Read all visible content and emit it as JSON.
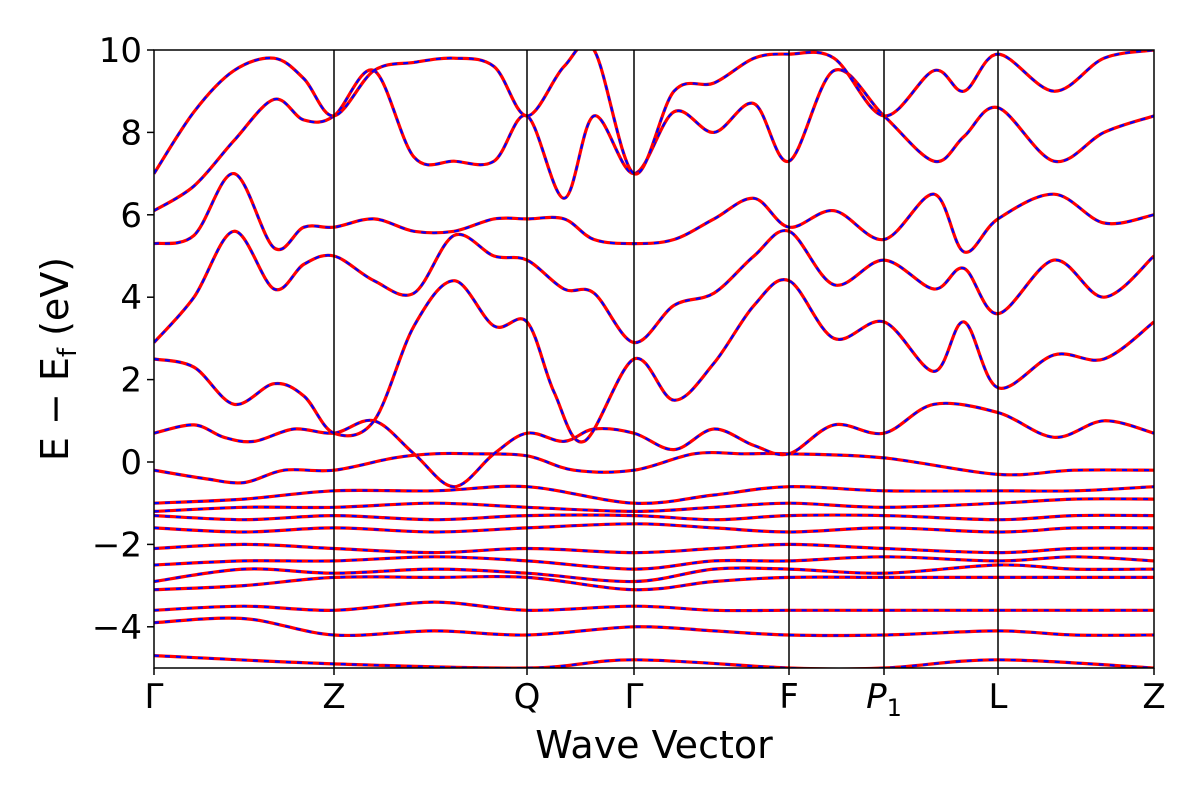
{
  "chart_data": {
    "type": "line",
    "title": "",
    "xlabel": "Wave Vector",
    "ylabel": "E − E_f (eV)",
    "ylabel_parts": {
      "main": "E − E",
      "sub": "f",
      "unit": " (eV)"
    },
    "ylim": [
      -5,
      10
    ],
    "yticks": [
      -4,
      -2,
      0,
      2,
      4,
      6,
      8,
      10
    ],
    "ytick_labels": [
      "−4",
      "−2",
      "0",
      "2",
      "4",
      "6",
      "8",
      "10"
    ],
    "grid": false,
    "legend": "none",
    "high_symmetry_points": [
      {
        "label": "Γ",
        "k": 0.0
      },
      {
        "label": "Z",
        "k": 0.18
      },
      {
        "label": "Q",
        "k": 0.373
      },
      {
        "label": "Γ",
        "k": 0.48
      },
      {
        "label": "F",
        "k": 0.635
      },
      {
        "label": "P1",
        "label_main": "P",
        "label_sub": "1",
        "k": 0.73
      },
      {
        "label": "L",
        "k": 0.844
      },
      {
        "label": "Z",
        "k": 1.0
      }
    ],
    "line_colors": {
      "series_a": "#ff0000",
      "series_b": "#0000ff"
    },
    "series_style": {
      "series_a": "solid",
      "series_b": "dashed"
    },
    "bands": [
      {
        "k": [
          0,
          0.18,
          0.373,
          0.48,
          0.635,
          0.73,
          0.844,
          1.0
        ],
        "E": [
          -4.7,
          -4.9,
          -5.0,
          -4.8,
          -5.0,
          -5.0,
          -4.8,
          -5.0
        ]
      },
      {
        "k": [
          0,
          0.09,
          0.18,
          0.28,
          0.373,
          0.48,
          0.56,
          0.635,
          0.73,
          0.844,
          0.92,
          1.0
        ],
        "E": [
          -3.9,
          -3.8,
          -4.2,
          -4.1,
          -4.2,
          -4.0,
          -4.1,
          -4.2,
          -4.2,
          -4.1,
          -4.2,
          -4.2
        ]
      },
      {
        "k": [
          0,
          0.09,
          0.18,
          0.28,
          0.373,
          0.48,
          0.56,
          0.635,
          0.73,
          0.844,
          0.92,
          1.0
        ],
        "E": [
          -3.6,
          -3.5,
          -3.6,
          -3.4,
          -3.6,
          -3.5,
          -3.6,
          -3.6,
          -3.6,
          -3.6,
          -3.6,
          -3.6
        ]
      },
      {
        "k": [
          0,
          0.09,
          0.18,
          0.28,
          0.373,
          0.48,
          0.56,
          0.635,
          0.73,
          0.844,
          0.92,
          1.0
        ],
        "E": [
          -3.1,
          -3.0,
          -2.8,
          -2.8,
          -2.8,
          -3.1,
          -2.9,
          -2.8,
          -2.8,
          -2.8,
          -2.8,
          -2.8
        ]
      },
      {
        "k": [
          0,
          0.09,
          0.18,
          0.28,
          0.373,
          0.48,
          0.56,
          0.635,
          0.73,
          0.844,
          0.92,
          1.0
        ],
        "E": [
          -2.9,
          -2.6,
          -2.7,
          -2.6,
          -2.7,
          -2.9,
          -2.6,
          -2.6,
          -2.7,
          -2.5,
          -2.6,
          -2.6
        ]
      },
      {
        "k": [
          0,
          0.09,
          0.18,
          0.28,
          0.373,
          0.48,
          0.56,
          0.635,
          0.73,
          0.844,
          0.92,
          1.0
        ],
        "E": [
          -2.5,
          -2.4,
          -2.4,
          -2.3,
          -2.4,
          -2.6,
          -2.4,
          -2.4,
          -2.3,
          -2.4,
          -2.3,
          -2.4
        ]
      },
      {
        "k": [
          0,
          0.09,
          0.18,
          0.28,
          0.373,
          0.48,
          0.56,
          0.635,
          0.73,
          0.844,
          0.92,
          1.0
        ],
        "E": [
          -2.1,
          -2.0,
          -2.1,
          -2.2,
          -2.1,
          -2.2,
          -2.1,
          -2.0,
          -2.1,
          -2.2,
          -2.1,
          -2.1
        ]
      },
      {
        "k": [
          0,
          0.09,
          0.18,
          0.28,
          0.373,
          0.48,
          0.56,
          0.635,
          0.73,
          0.844,
          0.92,
          1.0
        ],
        "E": [
          -1.6,
          -1.7,
          -1.6,
          -1.7,
          -1.6,
          -1.5,
          -1.6,
          -1.7,
          -1.6,
          -1.7,
          -1.6,
          -1.6
        ]
      },
      {
        "k": [
          0,
          0.09,
          0.18,
          0.28,
          0.373,
          0.48,
          0.56,
          0.635,
          0.73,
          0.844,
          0.92,
          1.0
        ],
        "E": [
          -1.3,
          -1.4,
          -1.3,
          -1.4,
          -1.3,
          -1.3,
          -1.4,
          -1.3,
          -1.3,
          -1.4,
          -1.3,
          -1.3
        ]
      },
      {
        "k": [
          0,
          0.09,
          0.18,
          0.28,
          0.373,
          0.48,
          0.56,
          0.635,
          0.73,
          0.844,
          0.92,
          1.0
        ],
        "E": [
          -1.2,
          -1.1,
          -1.1,
          -1.0,
          -1.1,
          -1.2,
          -1.1,
          -1.0,
          -1.1,
          -1.0,
          -0.9,
          -0.9
        ]
      },
      {
        "k": [
          0,
          0.09,
          0.18,
          0.28,
          0.373,
          0.48,
          0.56,
          0.635,
          0.73,
          0.844,
          0.92,
          1.0
        ],
        "E": [
          -1.0,
          -0.9,
          -0.7,
          -0.7,
          -0.6,
          -1.0,
          -0.8,
          -0.6,
          -0.7,
          -0.7,
          -0.7,
          -0.6
        ]
      },
      {
        "k": [
          0,
          0.05,
          0.09,
          0.13,
          0.18,
          0.24,
          0.28,
          0.32,
          0.373,
          0.42,
          0.48,
          0.54,
          0.59,
          0.635,
          0.73,
          0.844,
          0.92,
          1.0
        ],
        "E": [
          -0.2,
          -0.4,
          -0.5,
          -0.2,
          -0.2,
          0.1,
          0.2,
          0.2,
          0.15,
          -0.2,
          -0.2,
          0.2,
          0.2,
          0.2,
          0.1,
          -0.3,
          -0.2,
          -0.2
        ]
      },
      {
        "k": [
          0,
          0.04,
          0.07,
          0.1,
          0.14,
          0.18,
          0.22,
          0.26,
          0.3,
          0.34,
          0.373,
          0.41,
          0.44,
          0.48,
          0.52,
          0.56,
          0.6,
          0.635,
          0.68,
          0.73,
          0.78,
          0.844,
          0.9,
          0.95,
          1.0
        ],
        "E": [
          0.7,
          0.9,
          0.6,
          0.5,
          0.8,
          0.7,
          1.0,
          0.2,
          -0.6,
          0.2,
          0.7,
          0.5,
          0.8,
          0.7,
          0.3,
          0.8,
          0.4,
          0.2,
          0.9,
          0.7,
          1.4,
          1.2,
          0.6,
          1.0,
          0.7
        ]
      },
      {
        "k": [
          0,
          0.04,
          0.08,
          0.12,
          0.15,
          0.18,
          0.22,
          0.26,
          0.3,
          0.34,
          0.373,
          0.4,
          0.43,
          0.48,
          0.52,
          0.56,
          0.6,
          0.635,
          0.68,
          0.73,
          0.78,
          0.81,
          0.844,
          0.9,
          0.95,
          1.0
        ],
        "E": [
          2.5,
          2.3,
          1.4,
          1.9,
          1.6,
          0.7,
          1.0,
          3.3,
          4.4,
          3.3,
          3.4,
          1.7,
          0.5,
          2.5,
          1.5,
          2.4,
          3.8,
          4.4,
          3.0,
          3.4,
          2.2,
          3.4,
          1.8,
          2.6,
          2.5,
          3.4
        ]
      },
      {
        "k": [
          0,
          0.04,
          0.08,
          0.12,
          0.15,
          0.18,
          0.22,
          0.26,
          0.3,
          0.34,
          0.373,
          0.41,
          0.44,
          0.48,
          0.52,
          0.56,
          0.6,
          0.635,
          0.68,
          0.73,
          0.78,
          0.81,
          0.844,
          0.9,
          0.95,
          1.0
        ],
        "E": [
          2.9,
          4.0,
          5.6,
          4.2,
          4.8,
          5.0,
          4.4,
          4.1,
          5.5,
          5.0,
          4.9,
          4.2,
          4.1,
          2.9,
          3.8,
          4.1,
          5.0,
          5.6,
          4.3,
          4.9,
          4.2,
          4.7,
          3.6,
          4.9,
          4.0,
          5.0
        ]
      },
      {
        "k": [
          0,
          0.04,
          0.08,
          0.12,
          0.15,
          0.18,
          0.22,
          0.26,
          0.3,
          0.34,
          0.373,
          0.41,
          0.44,
          0.48,
          0.52,
          0.56,
          0.6,
          0.635,
          0.68,
          0.73,
          0.78,
          0.81,
          0.844,
          0.9,
          0.95,
          1.0
        ],
        "E": [
          5.3,
          5.5,
          7.0,
          5.2,
          5.7,
          5.7,
          5.9,
          5.6,
          5.6,
          5.9,
          5.9,
          5.9,
          5.4,
          5.3,
          5.4,
          5.9,
          6.4,
          5.7,
          6.1,
          5.4,
          6.5,
          5.1,
          5.9,
          6.5,
          5.8,
          6.0
        ]
      },
      {
        "k": [
          0,
          0.04,
          0.08,
          0.12,
          0.15,
          0.18,
          0.22,
          0.26,
          0.3,
          0.34,
          0.373,
          0.41,
          0.44,
          0.48,
          0.52,
          0.56,
          0.6,
          0.635,
          0.68,
          0.73,
          0.78,
          0.81,
          0.844,
          0.9,
          0.95,
          1.0
        ],
        "E": [
          6.1,
          6.7,
          7.8,
          8.8,
          8.3,
          8.4,
          9.5,
          7.4,
          7.3,
          7.3,
          8.4,
          6.4,
          8.4,
          7.0,
          8.5,
          8.0,
          8.7,
          7.3,
          9.5,
          8.4,
          7.3,
          7.9,
          8.6,
          7.3,
          8.0,
          8.4
        ]
      },
      {
        "k": [
          0,
          0.04,
          0.08,
          0.12,
          0.15,
          0.18,
          0.22,
          0.26,
          0.3,
          0.34,
          0.373,
          0.41,
          0.44,
          0.48,
          0.52,
          0.56,
          0.6,
          0.635,
          0.68,
          0.73,
          0.78,
          0.81,
          0.844,
          0.9,
          0.95,
          1.0
        ],
        "E": [
          7.0,
          8.5,
          9.5,
          9.8,
          9.3,
          8.4,
          9.5,
          9.7,
          9.8,
          9.6,
          8.4,
          9.6,
          10.0,
          7.0,
          9.0,
          9.2,
          9.8,
          9.9,
          9.8,
          8.4,
          9.5,
          9.0,
          9.9,
          9.0,
          9.8,
          10.0
        ]
      }
    ]
  }
}
